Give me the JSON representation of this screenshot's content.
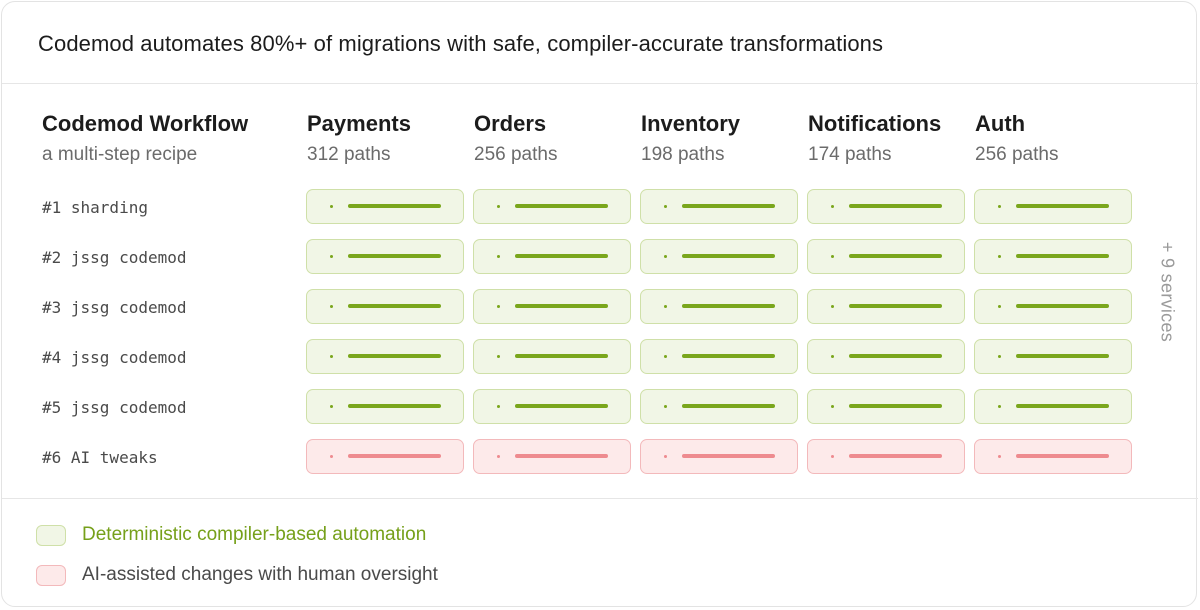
{
  "headline": "Codemod automates 80%+ of migrations with safe, compiler-accurate transformations",
  "workflow": {
    "title": "Codemod Workflow",
    "subtitle": "a multi-step recipe"
  },
  "services": [
    {
      "name": "Payments",
      "paths": "312 paths"
    },
    {
      "name": "Orders",
      "paths": "256 paths"
    },
    {
      "name": "Inventory",
      "paths": "198 paths"
    },
    {
      "name": "Notifications",
      "paths": "174 paths"
    },
    {
      "name": "Auth",
      "paths": "256 paths"
    }
  ],
  "steps": [
    {
      "label": "#1 sharding",
      "kind": "deterministic"
    },
    {
      "label": "#2 jssg codemod",
      "kind": "deterministic"
    },
    {
      "label": "#3 jssg codemod",
      "kind": "deterministic"
    },
    {
      "label": "#4 jssg codemod",
      "kind": "deterministic"
    },
    {
      "label": "#5 jssg codemod",
      "kind": "deterministic"
    },
    {
      "label": "#6 AI tweaks",
      "kind": "ai"
    }
  ],
  "more_services": "+ 9 services",
  "legend": {
    "deterministic": "Deterministic compiler-based automation",
    "ai": "AI-assisted changes with human oversight"
  },
  "colors": {
    "deterministic_fill": "#f1f6e6",
    "deterministic_accent": "#7aa61c",
    "ai_fill": "#fdeaea",
    "ai_accent": "#ee8b8f"
  }
}
